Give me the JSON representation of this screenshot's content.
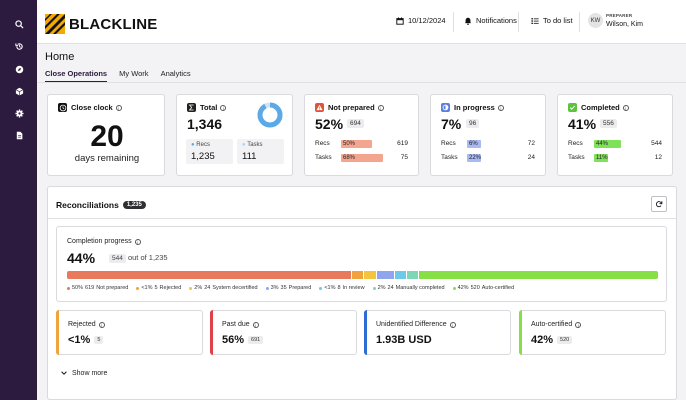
{
  "header": {
    "brand": "BLACKLINE",
    "date": "10/12/2024",
    "notifications": "Notifications",
    "todo": "To do list",
    "user_initials": "KW",
    "user_role": "PREPARER",
    "user_name": "Wilson, Kim"
  },
  "sidebar": {
    "items": [
      "search-icon",
      "history-icon",
      "compass-icon",
      "cube-icon",
      "gear-icon",
      "document-icon"
    ]
  },
  "page": {
    "title": "Home",
    "tabs": [
      {
        "label": "Close Operations",
        "active": true
      },
      {
        "label": "My Work",
        "active": false
      },
      {
        "label": "Analytics",
        "active": false
      }
    ]
  },
  "cards": {
    "close_clock": {
      "title": "Close clock",
      "value": "20",
      "caption": "days remaining"
    },
    "total": {
      "title": "Total",
      "value": "1,346",
      "recs_label": "Recs",
      "recs_value": "1,235",
      "tasks_label": "Tasks",
      "tasks_value": "111",
      "donut_recs_fraction": 0.918
    },
    "not_prepared": {
      "title": "Not prepared",
      "value": "52%",
      "count": "694",
      "recs_label": "Recs",
      "recs_pct": "50%",
      "recs_value": "619",
      "recs_fill": 0.5,
      "tasks_label": "Tasks",
      "tasks_pct": "68%",
      "tasks_value": "75",
      "tasks_fill": 0.68,
      "color": "#f4a58f"
    },
    "in_progress": {
      "title": "In progress",
      "value": "7%",
      "count": "96",
      "recs_label": "Recs",
      "recs_pct": "6%",
      "recs_value": "72",
      "recs_fill": 0.06,
      "tasks_label": "Tasks",
      "tasks_pct": "22%",
      "tasks_value": "24",
      "tasks_fill": 0.22,
      "color": "#a9b9f2"
    },
    "completed": {
      "title": "Completed",
      "value": "41%",
      "count": "556",
      "recs_label": "Recs",
      "recs_pct": "44%",
      "recs_value": "544",
      "recs_fill": 0.44,
      "tasks_label": "Tasks",
      "tasks_pct": "11%",
      "tasks_value": "12",
      "tasks_fill": 0.11,
      "color": "#7fe05a"
    }
  },
  "reconciliations": {
    "title": "Reconciliations",
    "count": "1,235",
    "progress": {
      "title": "Completion progress",
      "value": "44%",
      "count": "544",
      "out_of": "out of 1,235",
      "segments": [
        {
          "pct": "50%",
          "count": "619",
          "label": "Not prepared",
          "color": "#e8795b",
          "share": 0.5
        },
        {
          "pct": "<1%",
          "count": "5",
          "label": "Rejected",
          "color": "#f0a33c",
          "share": 0.02
        },
        {
          "pct": "2%",
          "count": "24",
          "label": "System decertified",
          "color": "#f3c43e",
          "share": 0.02
        },
        {
          "pct": "3%",
          "count": "35",
          "label": "Prepared",
          "color": "#8fa6ee",
          "share": 0.03
        },
        {
          "pct": "<1%",
          "count": "8",
          "label": "In review",
          "color": "#6ec8ea",
          "share": 0.02
        },
        {
          "pct": "2%",
          "count": "24",
          "label": "Manually completed",
          "color": "#7fd6b6",
          "share": 0.02
        },
        {
          "pct": "42%",
          "count": "520",
          "label": "Auto-certified",
          "color": "#86e045",
          "share": 0.42
        }
      ]
    },
    "stats": [
      {
        "label": "Rejected",
        "value": "<1%",
        "badge": "5",
        "color": "#f0a33c"
      },
      {
        "label": "Past due",
        "value": "56%",
        "badge": "691",
        "color": "#e0404a"
      },
      {
        "label": "Unidentified Difference",
        "value": "1.93B USD",
        "badge": "",
        "color": "#2c6cd4"
      },
      {
        "label": "Auto-certified",
        "value": "42%",
        "badge": "520",
        "color": "#86e045"
      }
    ],
    "show_more": "Show more"
  }
}
